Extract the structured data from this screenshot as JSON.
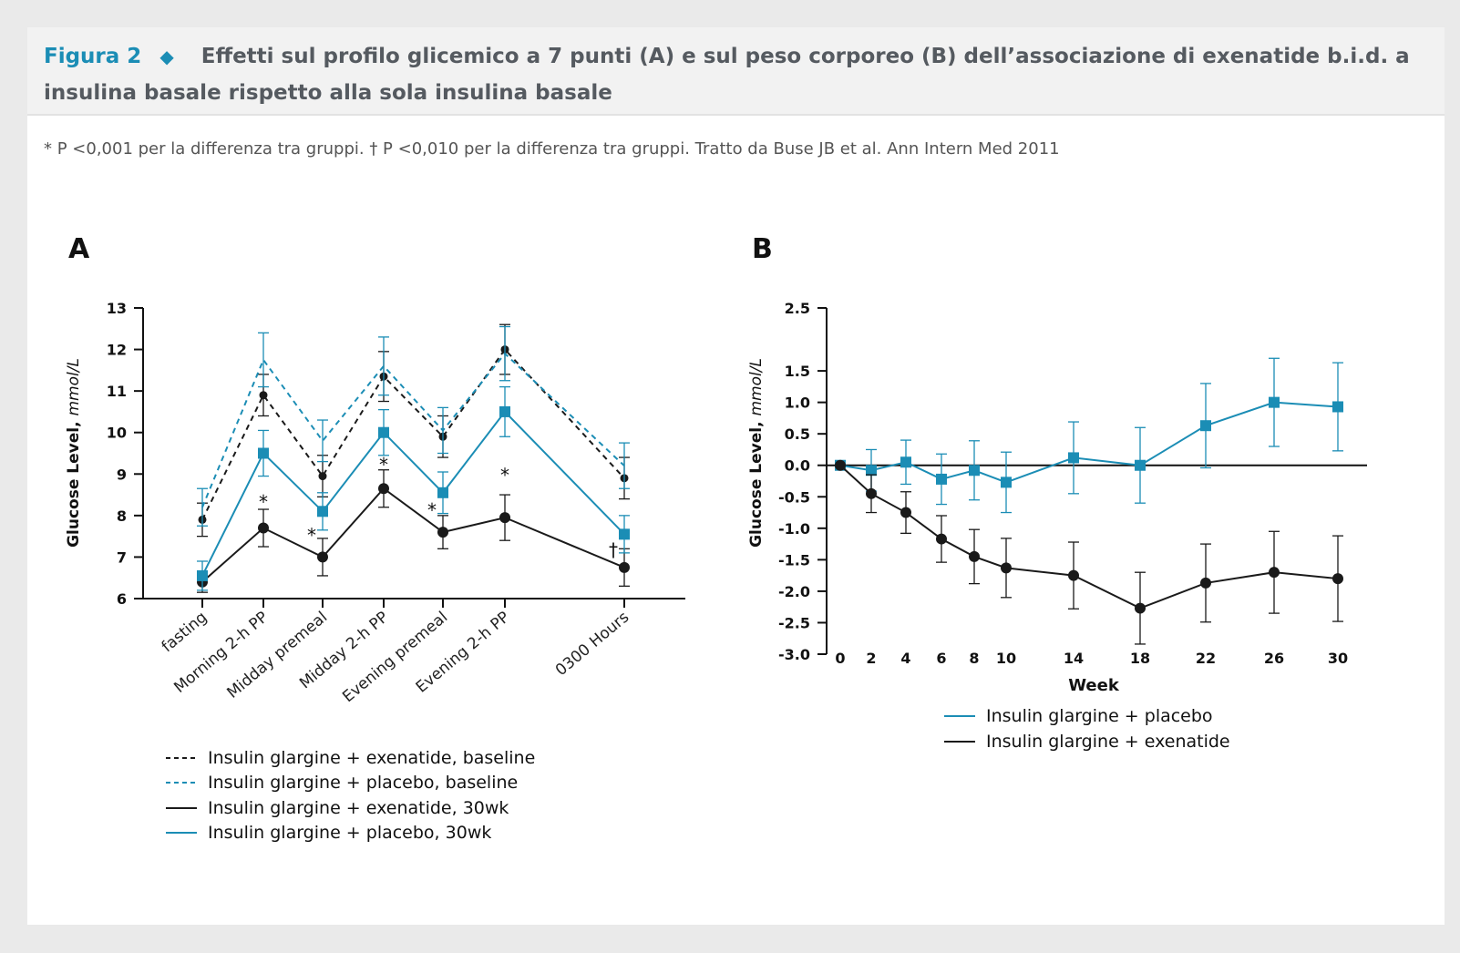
{
  "header": {
    "figure_label": "Figura 2",
    "diamond": "◆",
    "title": "Effetti sul profilo glicemico a 7 punti (A) e sul peso corporeo (B) dell’associazione di exenatide b.i.d. a insulina basale rispetto alla sola insulina basale"
  },
  "footnote": "* P <0,001 per la differenza tra gruppi. † P <0,010 per la differenza tra gruppi. Tratto da Buse JB et al. Ann Intern Med 2011",
  "colors": {
    "teal": "#1b8db5",
    "black": "#1a1a1a",
    "title_gray": "#555a60"
  },
  "chart_data": [
    {
      "panel": "A",
      "type": "line",
      "ylabel": "Glucose Level,",
      "ylabel_unit": "mmol/L",
      "ylim": [
        6,
        13
      ],
      "yticks": [
        6,
        7,
        8,
        9,
        10,
        11,
        12,
        13
      ],
      "categories": [
        "fasting",
        "Morning 2-h PP",
        "Midday premeal",
        "Midday 2-h PP",
        "Evening premeal",
        "Evening 2-h PP",
        "0300 Hours"
      ],
      "series": [
        {
          "name": "Insulin glargine + exenatide, baseline",
          "color": "#1a1a1a",
          "dashed": true,
          "marker": "small-circle",
          "values": [
            7.9,
            10.9,
            8.95,
            11.35,
            9.9,
            12.0,
            8.9
          ],
          "err": [
            0.4,
            0.5,
            0.5,
            0.6,
            0.5,
            0.6,
            0.5
          ]
        },
        {
          "name": "Insulin glargine + placebo, baseline",
          "color": "#1b8db5",
          "dashed": true,
          "marker": "none",
          "values": [
            8.2,
            11.75,
            9.8,
            11.6,
            10.05,
            11.9,
            9.2
          ],
          "err": [
            0.45,
            0.65,
            0.5,
            0.7,
            0.55,
            0.65,
            0.55
          ]
        },
        {
          "name": "Insulin glargine + exenatide, 30wk",
          "color": "#1a1a1a",
          "dashed": false,
          "marker": "circle",
          "values": [
            6.4,
            7.7,
            7.0,
            8.65,
            7.6,
            7.95,
            6.75
          ],
          "err": [
            0.25,
            0.45,
            0.45,
            0.45,
            0.4,
            0.55,
            0.45
          ]
        },
        {
          "name": "Insulin glargine + placebo, 30wk",
          "color": "#1b8db5",
          "dashed": false,
          "marker": "square",
          "values": [
            6.55,
            9.5,
            8.1,
            10.0,
            8.55,
            10.5,
            7.55
          ],
          "err": [
            0.35,
            0.55,
            0.45,
            0.55,
            0.5,
            0.6,
            0.45
          ]
        }
      ],
      "annotations": [
        {
          "category": 1,
          "text": "*",
          "y": 8.35
        },
        {
          "category": 2,
          "text": "*",
          "y": 7.55,
          "side": "left"
        },
        {
          "category": 3,
          "text": "*",
          "y": 9.25
        },
        {
          "category": 4,
          "text": "*",
          "y": 8.15,
          "side": "left"
        },
        {
          "category": 5,
          "text": "*",
          "y": 9.0
        },
        {
          "category": 6,
          "text": "†",
          "y": 7.2,
          "side": "left"
        }
      ]
    },
    {
      "panel": "B",
      "type": "line",
      "xlabel": "Week",
      "ylabel": "Glucose Level,",
      "ylabel_unit": "mmol/L",
      "ylim": [
        -3.0,
        2.5
      ],
      "yticks": [
        2.5,
        1.5,
        1.0,
        0.5,
        0.0,
        -0.5,
        -1.0,
        -1.5,
        -2.0,
        -2.5,
        -3.0
      ],
      "ytick_labels": [
        "2.5",
        "1.5",
        "1.0",
        "0.5",
        "0.0",
        "-0.5",
        "-1.0",
        "-1.5",
        "-2.0",
        "-2.5",
        "-3.0"
      ],
      "x": [
        0,
        2,
        4,
        6,
        8,
        10,
        14,
        18,
        22,
        26,
        30
      ],
      "series": [
        {
          "name": "Insulin glargine + placebo",
          "color": "#1b8db5",
          "marker": "square",
          "values": [
            0.0,
            -0.08,
            0.05,
            -0.22,
            -0.08,
            -0.27,
            0.12,
            0.0,
            0.63,
            1.0,
            0.93
          ],
          "err": [
            0.0,
            0.33,
            0.35,
            0.4,
            0.47,
            0.48,
            0.57,
            0.6,
            0.67,
            0.7,
            0.7
          ]
        },
        {
          "name": "Insulin glargine + exenatide",
          "color": "#1a1a1a",
          "marker": "circle",
          "values": [
            0.0,
            -0.45,
            -0.75,
            -1.17,
            -1.45,
            -1.63,
            -1.75,
            -2.27,
            -1.87,
            -1.7,
            -1.8
          ],
          "err": [
            0.0,
            0.3,
            0.33,
            0.37,
            0.43,
            0.47,
            0.53,
            0.57,
            0.62,
            0.65,
            0.68
          ]
        }
      ]
    }
  ]
}
